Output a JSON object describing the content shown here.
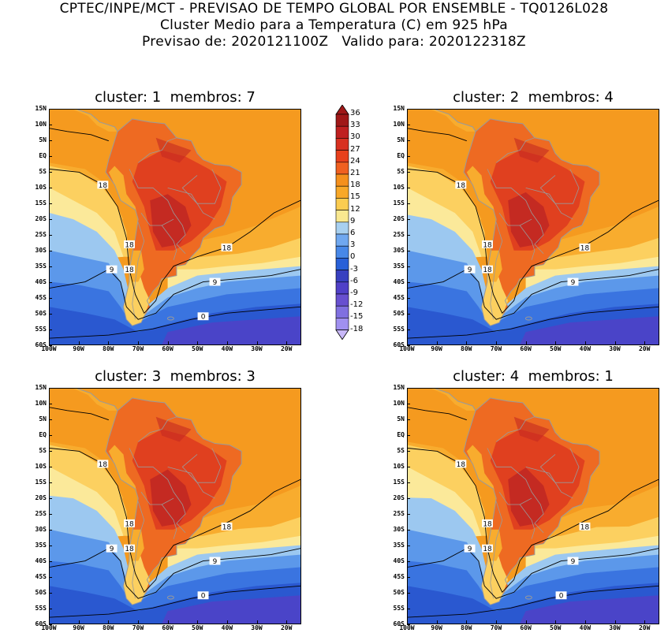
{
  "header": {
    "line1": "CPTEC/INPE/MCT - PREVISAO DE TEMPO GLOBAL POR ENSEMBLE - TQ0126L028",
    "line2": "Cluster Medio para a Temperatura (C) em 925 hPa",
    "line3": "Previsao de: 2020121100Z   Valido para: 2020122318Z"
  },
  "panels": [
    {
      "title": "cluster: 1  membros: 7",
      "labels": [
        "18",
        "18",
        "18",
        "18",
        "9",
        "9",
        "0"
      ]
    },
    {
      "title": "cluster: 2  membros: 4",
      "labels": [
        "18",
        "18",
        "18",
        "18",
        "9",
        "9"
      ]
    },
    {
      "title": "cluster: 3  membros: 3",
      "labels": [
        "18",
        "18",
        "18",
        "18",
        "9",
        "9",
        "0"
      ]
    },
    {
      "title": "cluster: 4  membros: 1",
      "labels": [
        "18",
        "18",
        "18",
        "18",
        "9",
        "9",
        "0"
      ]
    }
  ],
  "lat_labels": [
    "15N",
    "10N",
    "5N",
    "EQ",
    "5S",
    "10S",
    "15S",
    "20S",
    "25S",
    "30S",
    "35S",
    "40S",
    "45S",
    "50S",
    "55S",
    "60S"
  ],
  "lon_labels": [
    "100W",
    "90W",
    "80W",
    "70W",
    "60W",
    "50W",
    "40W",
    "30W",
    "20W"
  ],
  "colorbar": {
    "levels": [
      "36",
      "33",
      "30",
      "27",
      "24",
      "21",
      "18",
      "15",
      "12",
      "9",
      "6",
      "3",
      "0",
      "-3",
      "-6",
      "-9",
      "-12",
      "-15",
      "-18"
    ],
    "colors": [
      "#a01818",
      "#bf2020",
      "#d83020",
      "#e8401c",
      "#f06020",
      "#f5901c",
      "#f8a828",
      "#fbcc50",
      "#f9e890",
      "#a8d0f0",
      "#70a8f0",
      "#4888e8",
      "#2860d8",
      "#3840c0",
      "#5040c8",
      "#6850d0",
      "#8070e0",
      "#a090f0",
      "#c8b8f8"
    ]
  },
  "palette": {
    "hot_dark": "#c42a22",
    "hot": "#e0401f",
    "warm": "#ee6a22",
    "orange": "#f59a1f",
    "orange_light": "#f8ac2e",
    "yellow": "#fcd060",
    "pale": "#fbe99a",
    "blue_light": "#9cc8f0",
    "blue": "#5c98ea",
    "blue_mid": "#3a74e0",
    "blue_dark": "#2a58d0",
    "violet": "#4a44c8",
    "border": "#9a9a9a"
  }
}
